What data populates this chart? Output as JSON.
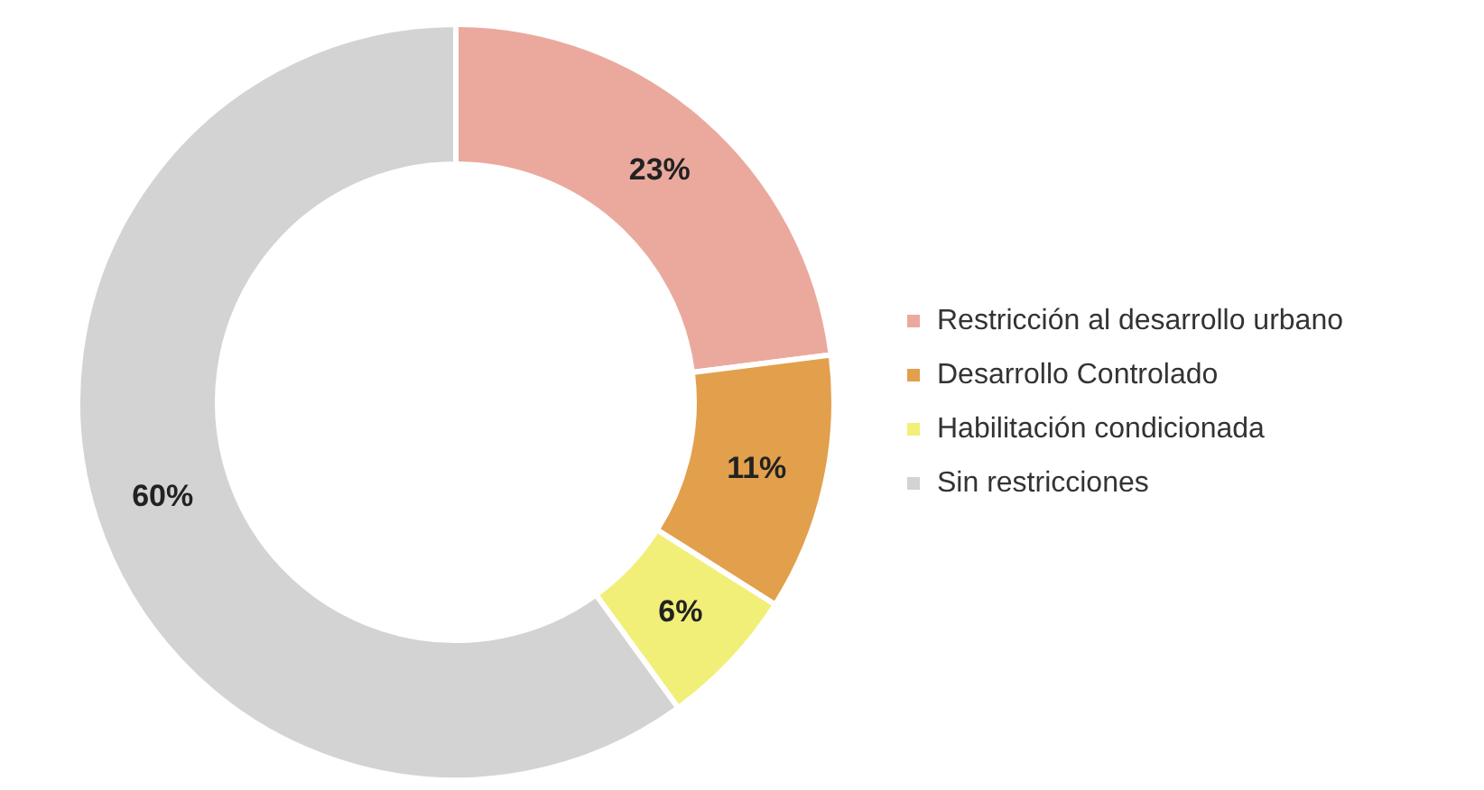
{
  "chart_data": {
    "type": "donut",
    "categories": [
      "Restricción al desarrollo urbano",
      "Desarrollo Controlado",
      "Habilitación condicionada",
      "Sin restricciones"
    ],
    "values": [
      23,
      11,
      6,
      60
    ],
    "value_labels": [
      "23%",
      "11%",
      "6%",
      "60%"
    ],
    "colors": [
      "#eba99e",
      "#e2a04c",
      "#f1ef78",
      "#d3d3d3"
    ],
    "legend": "right"
  }
}
